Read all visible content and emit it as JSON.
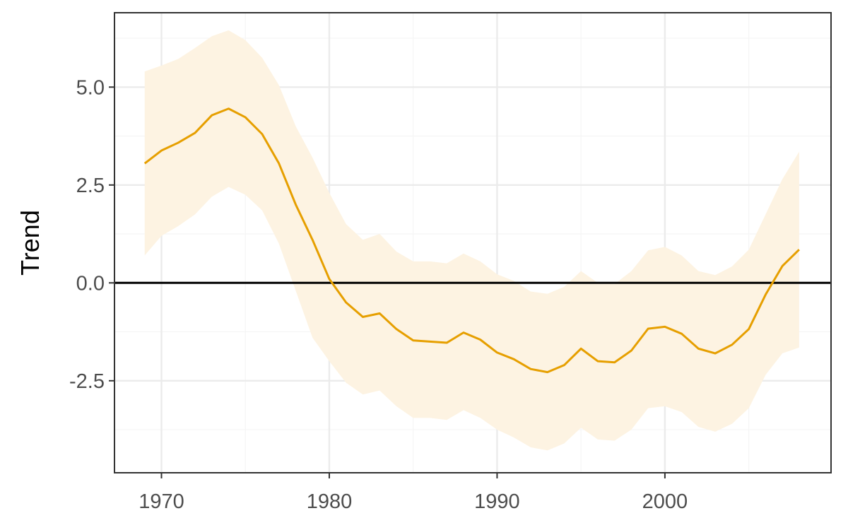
{
  "chart_data": {
    "type": "line",
    "title": "",
    "xlabel": "",
    "ylabel": "Trend",
    "xlim": [
      1967.2,
      2009.9
    ],
    "ylim": [
      -4.85,
      6.9
    ],
    "grid": true,
    "x_ticks": [
      {
        "value": 1970,
        "label": "1970"
      },
      {
        "value": 1980,
        "label": "1980"
      },
      {
        "value": 1990,
        "label": "1990"
      },
      {
        "value": 2000,
        "label": "2000"
      }
    ],
    "y_ticks": [
      {
        "value": -2.5,
        "label": "-2.5"
      },
      {
        "value": 0.0,
        "label": "0.0"
      },
      {
        "value": 2.5,
        "label": "2.5"
      },
      {
        "value": 5.0,
        "label": "5.0"
      }
    ],
    "reference_line": 0,
    "x": [
      1969,
      1970,
      1971,
      1972,
      1973,
      1974,
      1975,
      1976,
      1977,
      1978,
      1979,
      1980,
      1981,
      1982,
      1983,
      1984,
      1985,
      1986,
      1987,
      1988,
      1989,
      1990,
      1991,
      1992,
      1993,
      1994,
      1995,
      1996,
      1997,
      1998,
      1999,
      2000,
      2001,
      2002,
      2003,
      2004,
      2005,
      2006,
      2007,
      2008
    ],
    "series": [
      {
        "values": [
          3.05,
          3.38,
          3.58,
          3.83,
          4.28,
          4.45,
          4.23,
          3.8,
          3.05,
          2.0,
          1.1,
          0.1,
          -0.5,
          -0.87,
          -0.78,
          -1.18,
          -1.47,
          -1.5,
          -1.53,
          -1.27,
          -1.45,
          -1.78,
          -1.95,
          -2.2,
          -2.28,
          -2.1,
          -1.68,
          -2.0,
          -2.03,
          -1.73,
          -1.17,
          -1.12,
          -1.3,
          -1.68,
          -1.8,
          -1.58,
          -1.18,
          -0.3,
          0.43,
          0.85
        ],
        "lower": [
          0.7,
          1.2,
          1.45,
          1.75,
          2.2,
          2.45,
          2.25,
          1.85,
          1.0,
          -0.2,
          -1.4,
          -2.0,
          -2.55,
          -2.85,
          -2.75,
          -3.15,
          -3.45,
          -3.45,
          -3.5,
          -3.25,
          -3.45,
          -3.75,
          -3.95,
          -4.2,
          -4.28,
          -4.1,
          -3.7,
          -4.0,
          -4.03,
          -3.75,
          -3.2,
          -3.15,
          -3.3,
          -3.68,
          -3.8,
          -3.6,
          -3.2,
          -2.35,
          -1.8,
          -1.65
        ],
        "upper": [
          5.4,
          5.55,
          5.72,
          6.0,
          6.3,
          6.45,
          6.2,
          5.75,
          5.05,
          4.0,
          3.2,
          2.3,
          1.5,
          1.1,
          1.25,
          0.8,
          0.55,
          0.55,
          0.5,
          0.75,
          0.55,
          0.22,
          0.05,
          -0.22,
          -0.28,
          -0.1,
          0.3,
          0.0,
          -0.03,
          0.3,
          0.83,
          0.92,
          0.7,
          0.3,
          0.2,
          0.42,
          0.85,
          1.75,
          2.65,
          3.35
        ]
      }
    ],
    "colors": {
      "line": "#E69F00",
      "ribbon": "#FDF3E2",
      "reference": "#000000",
      "grid_major": "#EBEBEB",
      "grid_minor": "#F5F5F5",
      "panel_border": "#333333"
    }
  }
}
